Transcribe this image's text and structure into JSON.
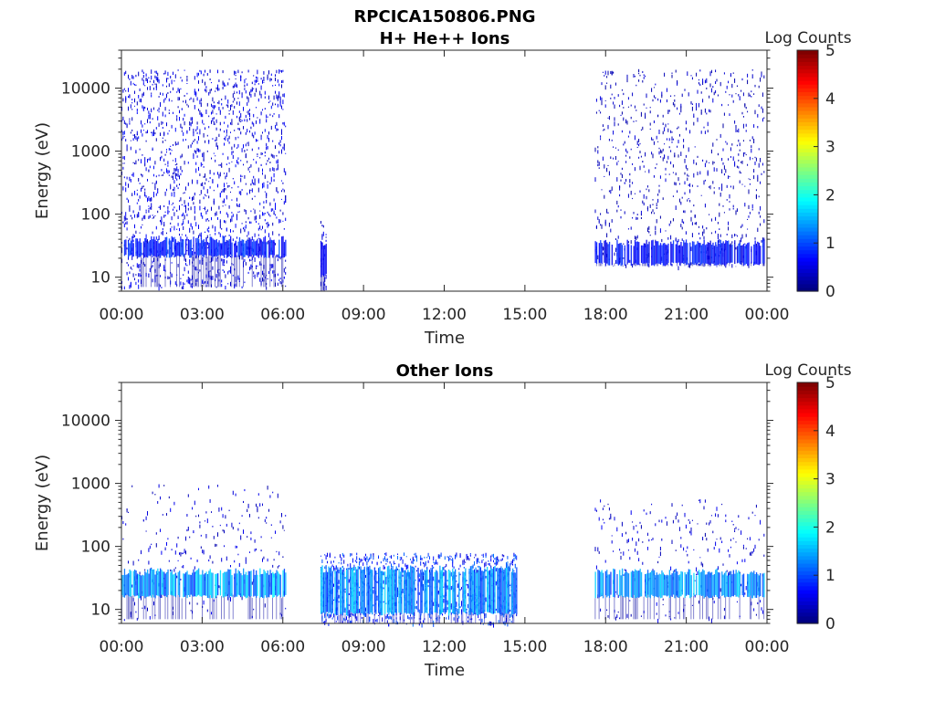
{
  "figure": {
    "title": "RPCICA150806.PNG"
  },
  "colorbar": {
    "label": "Log Counts",
    "ticks": [
      "0",
      "1",
      "2",
      "3",
      "4",
      "5"
    ],
    "range": [
      0,
      5
    ],
    "colormap": "jet"
  },
  "chart_data": [
    {
      "type": "heatmap",
      "title": "H+ He++ Ions",
      "xlabel": "Time",
      "ylabel": "Energy (eV)",
      "xticks": [
        "00:00",
        "03:00",
        "06:00",
        "09:00",
        "12:00",
        "15:00",
        "18:00",
        "21:00",
        "00:00"
      ],
      "xlim_hours": [
        0,
        24
      ],
      "yscale": "log",
      "ylim": [
        6,
        40000
      ],
      "yticks": [
        "10",
        "100",
        "1000",
        "10000"
      ],
      "ytick_values": [
        10,
        100,
        1000,
        10000
      ],
      "color_label": "Log Counts",
      "color_range": [
        0,
        5
      ],
      "regions": [
        {
          "start_hour": 0.0,
          "end_hour": 6.1,
          "emin": 7,
          "emax": 20000,
          "intensity": 0.6,
          "density": 0.35,
          "band": [
            20,
            45
          ],
          "band_intensity": 0.9
        },
        {
          "start_hour": 7.4,
          "end_hour": 7.6,
          "emin": 6,
          "emax": 80,
          "intensity": 0.5,
          "density": 0.5,
          "band": [
            10,
            40
          ],
          "band_intensity": 0.7
        },
        {
          "start_hour": 17.6,
          "end_hour": 23.9,
          "emin": 15,
          "emax": 20000,
          "intensity": 0.4,
          "density": 0.18,
          "band": [
            15,
            40
          ],
          "band_intensity": 0.8
        }
      ]
    },
    {
      "type": "heatmap",
      "title": "Other Ions",
      "xlabel": "Time",
      "ylabel": "Energy (eV)",
      "xticks": [
        "00:00",
        "03:00",
        "06:00",
        "09:00",
        "12:00",
        "15:00",
        "18:00",
        "21:00",
        "00:00"
      ],
      "xlim_hours": [
        0,
        24
      ],
      "yscale": "log",
      "ylim": [
        6,
        40000
      ],
      "yticks": [
        "10",
        "100",
        "1000",
        "10000"
      ],
      "ytick_values": [
        10,
        100,
        1000,
        10000
      ],
      "color_label": "Log Counts",
      "color_range": [
        0,
        5
      ],
      "regions": [
        {
          "start_hour": 0.0,
          "end_hour": 6.1,
          "emin": 7,
          "emax": 1000,
          "intensity": 0.5,
          "density": 0.12,
          "band": [
            15,
            45
          ],
          "band_intensity": 1.6
        },
        {
          "start_hour": 7.4,
          "end_hour": 14.7,
          "emin": 6,
          "emax": 80,
          "intensity": 1.0,
          "density": 0.55,
          "band": [
            8,
            50
          ],
          "band_intensity": 1.5
        },
        {
          "start_hour": 17.6,
          "end_hour": 23.9,
          "emin": 7,
          "emax": 600,
          "intensity": 0.5,
          "density": 0.12,
          "band": [
            15,
            45
          ],
          "band_intensity": 1.5
        }
      ]
    }
  ]
}
